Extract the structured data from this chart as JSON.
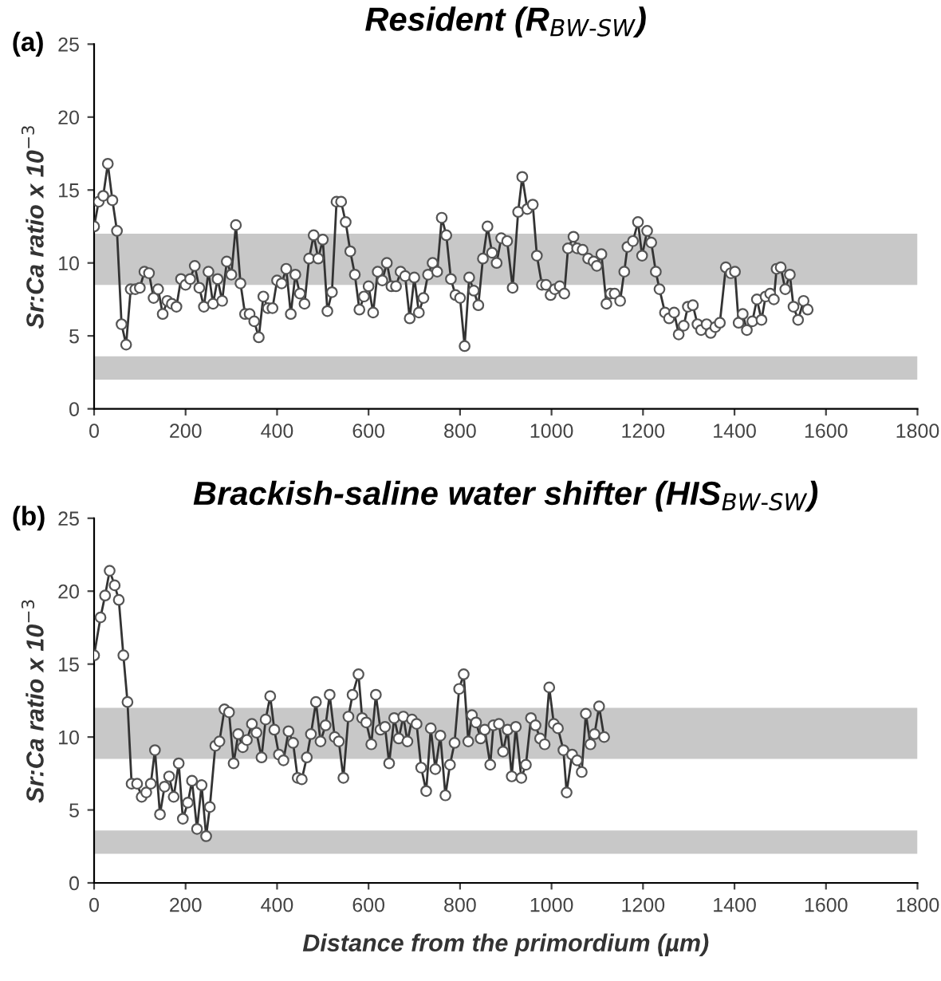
{
  "chart_data": [
    {
      "type": "line",
      "title": "Resident (R$_{BW-SW}$)",
      "ylabel": "Sr:Ca ratio x 10$^{−3}$",
      "annotations": [
        "(a)"
      ],
      "marker": "circle",
      "line_style": "solid",
      "grid": false,
      "legend": false,
      "xlim": [
        0,
        1800
      ],
      "xticks": [
        0,
        200,
        400,
        600,
        800,
        1000,
        1200,
        1400,
        1600,
        1800
      ],
      "ylim": [
        0,
        25
      ],
      "yticks": [
        0,
        5,
        10,
        15,
        20,
        25
      ],
      "bands": [
        {
          "axis": "y",
          "from": 8.5,
          "to": 12,
          "color": "#c8c8c8"
        },
        {
          "axis": "y",
          "from": 2,
          "to": 3.6,
          "color": "#c8c8c8"
        }
      ],
      "series": [
        {
          "color": "#333333",
          "x": [
            0,
            10,
            20,
            30,
            40,
            50,
            60,
            70,
            80,
            90,
            100,
            110,
            120,
            130,
            140,
            150,
            160,
            170,
            180,
            190,
            200,
            210,
            220,
            230,
            240,
            250,
            260,
            270,
            280,
            290,
            300,
            310,
            320,
            330,
            340,
            350,
            360,
            370,
            380,
            390,
            400,
            410,
            420,
            430,
            440,
            450,
            460,
            470,
            480,
            490,
            500,
            510,
            520,
            530,
            540,
            550,
            560,
            570,
            580,
            590,
            600,
            610,
            620,
            630,
            640,
            650,
            660,
            670,
            680,
            690,
            700,
            710,
            720,
            730,
            740,
            750,
            760,
            770,
            780,
            790,
            800,
            810,
            820,
            830,
            840,
            850,
            860,
            870,
            880,
            890,
            903,
            915,
            927,
            936,
            947,
            959,
            968,
            979,
            988,
            998,
            1007,
            1018,
            1028,
            1036,
            1048,
            1056,
            1068,
            1080,
            1092,
            1099,
            1109,
            1120,
            1129,
            1138,
            1150,
            1159,
            1166,
            1178,
            1189,
            1198,
            1209,
            1218,
            1228,
            1236,
            1248,
            1257,
            1268,
            1278,
            1289,
            1298,
            1309,
            1319,
            1327,
            1339,
            1348,
            1358,
            1368,
            1381,
            1392,
            1401,
            1409,
            1418,
            1427,
            1439,
            1449,
            1459,
            1468,
            1478,
            1486,
            1492,
            1501,
            1511,
            1521,
            1529,
            1539,
            1551,
            1560
          ],
          "values": [
            12.5,
            14.2,
            14.6,
            16.8,
            14.3,
            12.2,
            5.8,
            4.4,
            8.2,
            8.2,
            8.3,
            9.4,
            9.3,
            7.6,
            8.2,
            6.5,
            7.4,
            7.2,
            7.0,
            8.9,
            8.5,
            8.9,
            9.8,
            8.3,
            7.0,
            9.4,
            7.2,
            8.9,
            7.4,
            10.1,
            9.2,
            12.6,
            8.6,
            6.5,
            6.5,
            6.0,
            4.9,
            7.7,
            6.9,
            6.9,
            8.8,
            8.6,
            9.6,
            6.5,
            9.2,
            7.9,
            7.2,
            10.3,
            11.9,
            10.3,
            11.6,
            6.7,
            8.0,
            14.2,
            14.2,
            12.8,
            10.8,
            9.2,
            6.8,
            7.7,
            8.4,
            6.6,
            9.4,
            8.8,
            10.0,
            8.4,
            8.4,
            9.4,
            9.1,
            6.2,
            9.0,
            6.6,
            7.6,
            9.2,
            10.0,
            9.4,
            13.1,
            11.9,
            8.9,
            7.8,
            7.6,
            4.3,
            9.0,
            8.1,
            7.1,
            10.3,
            12.5,
            10.7,
            10.0,
            11.7,
            11.5,
            8.3,
            13.5,
            15.9,
            13.7,
            14.0,
            10.5,
            8.5,
            8.5,
            7.8,
            8.2,
            8.4,
            7.9,
            11.0,
            11.8,
            11.0,
            10.9,
            10.3,
            10.1,
            9.8,
            10.6,
            7.2,
            7.9,
            7.9,
            7.4,
            9.4,
            11.1,
            11.5,
            12.8,
            10.5,
            12.2,
            11.4,
            9.4,
            8.2,
            6.6,
            6.2,
            6.6,
            5.1,
            5.7,
            7.0,
            7.1,
            5.8,
            5.4,
            5.8,
            5.2,
            5.6,
            5.9,
            9.7,
            9.3,
            9.4,
            5.9,
            6.5,
            5.4,
            6.0,
            7.5,
            6.1,
            7.7,
            7.9,
            7.5,
            9.6,
            9.7,
            8.2,
            9.2,
            7.0,
            6.1,
            7.4,
            6.8
          ]
        }
      ]
    },
    {
      "type": "line",
      "title": "Brackish-saline water shifter (HIS$_{BW-SW}$)",
      "ylabel": "Sr:Ca ratio x 10$^{−3}$",
      "xlabel": "Distance from the primordium (µm)",
      "annotations": [
        "(b)"
      ],
      "marker": "circle",
      "line_style": "solid",
      "grid": false,
      "legend": false,
      "xlim": [
        0,
        1800
      ],
      "xticks": [
        0,
        200,
        400,
        600,
        800,
        1000,
        1200,
        1400,
        1600,
        1800
      ],
      "ylim": [
        0,
        25
      ],
      "yticks": [
        0,
        5,
        10,
        15,
        20,
        25
      ],
      "bands": [
        {
          "axis": "y",
          "from": 8.5,
          "to": 12,
          "color": "#c8c8c8"
        },
        {
          "axis": "y",
          "from": 2,
          "to": 3.6,
          "color": "#c8c8c8"
        }
      ],
      "series": [
        {
          "color": "#333333",
          "x": [
            0,
            14,
            24,
            34,
            45,
            54,
            64,
            73,
            82,
            94,
            104,
            114,
            124,
            133,
            144,
            154,
            164,
            174,
            185,
            194,
            205,
            214,
            225,
            235,
            245,
            253,
            265,
            274,
            285,
            295,
            305,
            315,
            325,
            334,
            345,
            355,
            366,
            375,
            385,
            394,
            404,
            414,
            425,
            435,
            445,
            454,
            465,
            474,
            485,
            495,
            506,
            515,
            526,
            535,
            545,
            556,
            565,
            578,
            586,
            595,
            606,
            616,
            626,
            636,
            645,
            656,
            666,
            676,
            685,
            695,
            705,
            715,
            726,
            736,
            746,
            757,
            768,
            778,
            788,
            798,
            808,
            818,
            826,
            835,
            845,
            854,
            866,
            873,
            885,
            894,
            904,
            913,
            922,
            934,
            944,
            955,
            965,
            975,
            985,
            995,
            1005,
            1014,
            1026,
            1033,
            1045,
            1056,
            1066,
            1075,
            1085,
            1094,
            1104,
            1115
          ],
          "values": [
            15.6,
            18.2,
            19.7,
            21.4,
            20.4,
            19.4,
            15.6,
            12.4,
            6.8,
            6.8,
            5.9,
            6.2,
            6.8,
            9.1,
            4.7,
            6.6,
            7.3,
            5.9,
            8.2,
            4.4,
            5.5,
            7.0,
            3.7,
            6.7,
            3.2,
            5.2,
            9.4,
            9.7,
            11.9,
            11.7,
            8.2,
            10.2,
            9.3,
            9.8,
            10.9,
            10.3,
            8.6,
            11.2,
            12.8,
            10.5,
            8.8,
            8.4,
            10.4,
            9.6,
            7.2,
            7.1,
            8.6,
            10.2,
            12.4,
            9.7,
            10.8,
            12.9,
            10.0,
            9.7,
            7.2,
            11.4,
            12.9,
            14.3,
            11.3,
            11.0,
            9.5,
            12.9,
            10.5,
            10.7,
            8.2,
            11.3,
            9.9,
            11.4,
            9.7,
            11.2,
            10.9,
            7.9,
            6.3,
            10.6,
            7.8,
            10.1,
            6.0,
            8.1,
            9.6,
            13.3,
            14.3,
            9.7,
            11.5,
            11.0,
            9.9,
            10.5,
            8.1,
            10.8,
            10.9,
            9.0,
            10.5,
            7.3,
            10.7,
            7.2,
            8.1,
            11.3,
            10.8,
            9.9,
            9.5,
            13.4,
            10.9,
            10.6,
            9.1,
            6.2,
            8.8,
            8.4,
            7.6,
            11.6,
            9.5,
            10.2,
            12.1,
            10.0
          ]
        }
      ]
    }
  ]
}
